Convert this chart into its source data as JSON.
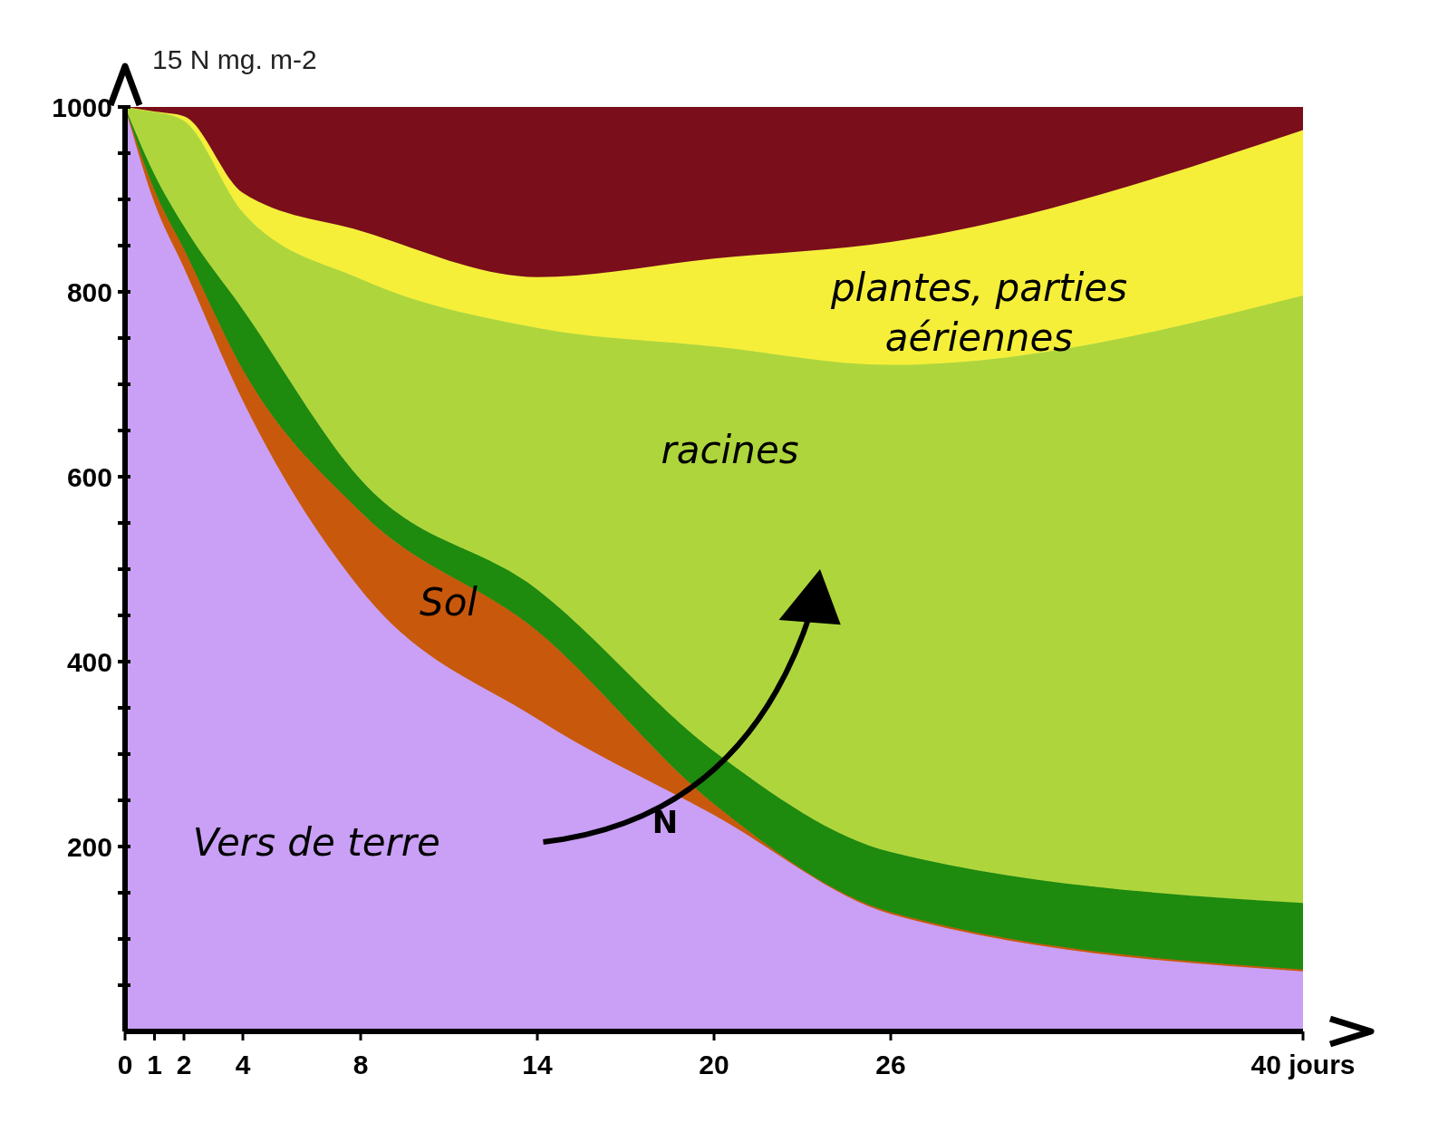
{
  "chart_data": {
    "type": "area",
    "stacked": true,
    "ylabel": "15 N mg. m-2",
    "annotations": [
      "N"
    ],
    "x": [
      0,
      1,
      2,
      4,
      8,
      14,
      20,
      26,
      40
    ],
    "series": [
      {
        "name": "Vers de terre",
        "color": "#c9a0f5",
        "values": [
          1000,
          896,
          826,
          682,
          478,
          338,
          234,
          127,
          65
        ]
      },
      {
        "name": "Sol",
        "color": "#c8580c",
        "values": [
          0,
          14,
          20,
          34,
          84,
          95,
          12,
          2,
          2
        ]
      },
      {
        "color": "#1e8a0e",
        "values": [
          0,
          17,
          25,
          65,
          35,
          45,
          57,
          65,
          72
        ]
      },
      {
        "name": "racines",
        "color": "#aed63c",
        "values": [
          0,
          68,
          114,
          105,
          217,
          283,
          438,
          527,
          657
        ]
      },
      {
        "name": "plantes, parties aériennes",
        "color": "#f5ef3a",
        "values": [
          0,
          0,
          5,
          21,
          52,
          55,
          95,
          133,
          179
        ]
      },
      {
        "color": "#7a0e1a",
        "values": [
          0,
          5,
          10,
          93,
          134,
          184,
          164,
          146,
          25
        ]
      }
    ],
    "xlim": [
      0,
      40
    ],
    "xticks": [
      0,
      1,
      2,
      4,
      8,
      14,
      20,
      26,
      {
        "value": 40,
        "label": "40 jours"
      }
    ],
    "ylim": [
      0,
      1000
    ],
    "yticks": [
      {
        "value": 50,
        "label": null
      },
      {
        "value": 100,
        "label": null
      },
      {
        "value": 150,
        "label": null
      },
      200,
      {
        "value": 250,
        "label": null
      },
      {
        "value": 300,
        "label": null
      },
      {
        "value": 350,
        "label": null
      },
      400,
      {
        "value": 450,
        "label": null
      },
      {
        "value": 500,
        "label": null
      },
      {
        "value": 550,
        "label": null
      },
      600,
      {
        "value": 650,
        "label": null
      },
      {
        "value": 700,
        "label": null
      },
      {
        "value": 750,
        "label": null
      },
      800,
      {
        "value": 850,
        "label": null
      },
      {
        "value": 900,
        "label": null
      },
      {
        "value": 950,
        "label": null
      },
      1000
    ],
    "grid": false,
    "legend": false
  }
}
